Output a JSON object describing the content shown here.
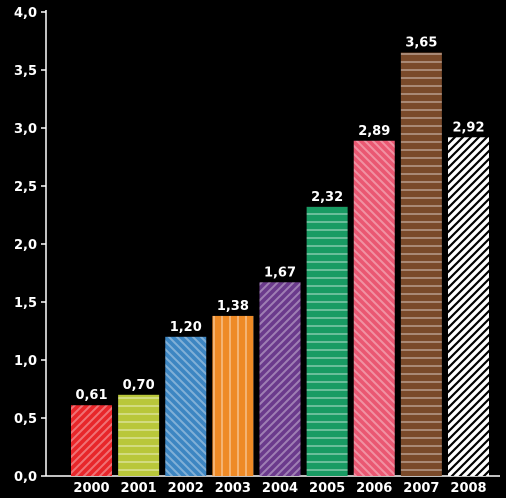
{
  "chart_data": {
    "type": "bar",
    "title": "",
    "xlabel": "",
    "ylabel": "",
    "categories": [
      "2000",
      "2001",
      "2002",
      "2003",
      "2004",
      "2005",
      "2006",
      "2007",
      "2008"
    ],
    "values": [
      0.61,
      0.7,
      1.2,
      1.38,
      1.67,
      2.32,
      2.89,
      3.65,
      2.92
    ],
    "value_labels": [
      "0,61",
      "0,70",
      "1,20",
      "1,38",
      "1,67",
      "2,32",
      "2,89",
      "3,65",
      "2,92"
    ],
    "ylim": [
      0,
      4.0
    ],
    "yticks": [
      "0,0",
      "0,5",
      "1,0",
      "1,5",
      "2,0",
      "2,5",
      "3,0",
      "3,5",
      "4,0"
    ],
    "grid": false,
    "background": "#000000",
    "bar_colors": [
      "#e8262a",
      "#b9c73a",
      "#3d86c2",
      "#ee8a26",
      "#6b3a8c",
      "#199b63",
      "#ea5872",
      "#7a4a2a",
      "#ffffff"
    ],
    "bar_patterns": [
      "diag-up",
      "horizontal",
      "diag-down",
      "vertical",
      "diag-up",
      "horizontal",
      "diag-down",
      "horizontal",
      "diag-up"
    ]
  }
}
